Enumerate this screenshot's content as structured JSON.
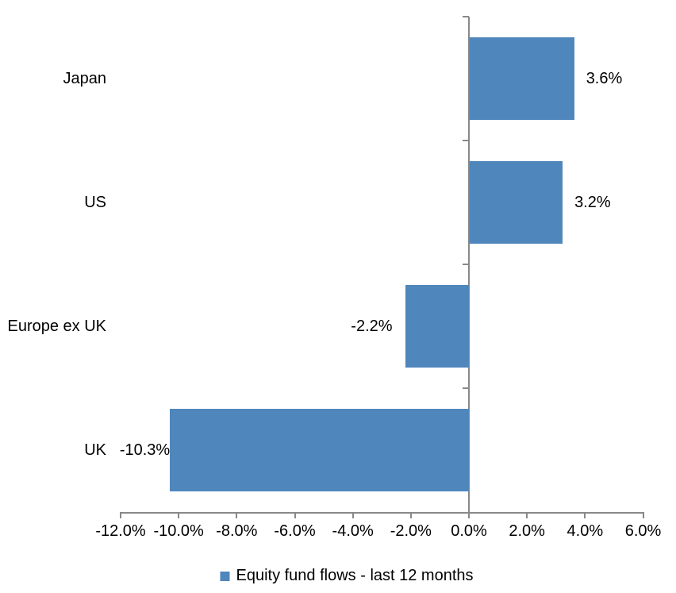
{
  "chart_data": {
    "type": "bar",
    "orientation": "horizontal",
    "categories": [
      "Japan",
      "US",
      "Europe ex UK",
      "UK"
    ],
    "series": [
      {
        "name": "Equity fund flows - last 12 months",
        "values": [
          3.6,
          3.2,
          -2.2,
          -10.3
        ],
        "data_labels": [
          "3.6%",
          "3.2%",
          "-2.2%",
          "-10.3%"
        ]
      }
    ],
    "x_axis": {
      "min": -12,
      "max": 6,
      "step": 2,
      "tick_labels": [
        "-12.0%",
        "-10.0%",
        "-8.0%",
        "-6.0%",
        "-4.0%",
        "-2.0%",
        "0.0%",
        "2.0%",
        "4.0%",
        "6.0%"
      ]
    },
    "legend": {
      "position": "bottom",
      "entries": [
        "Equity fund flows - last 12 months"
      ]
    },
    "colors": {
      "bar": "#4F86BC",
      "axis": "#898989",
      "text": "#000000"
    },
    "grid": false
  }
}
